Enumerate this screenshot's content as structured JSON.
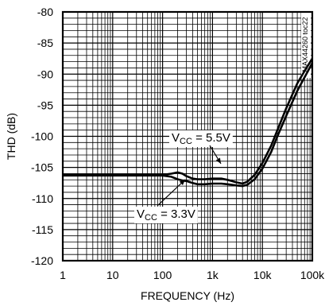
{
  "chart_data": {
    "type": "line",
    "xlabel": "FREQUENCY (Hz)",
    "ylabel": "THD (dB)",
    "x_scale": "log",
    "xlim": [
      1,
      100000
    ],
    "ylim": [
      -120,
      -80
    ],
    "xticks": [
      1,
      10,
      100,
      1000,
      10000,
      100000
    ],
    "xtick_labels": [
      "1",
      "10",
      "100",
      "1k",
      "10k",
      "100k"
    ],
    "yticks": [
      -80,
      -85,
      -90,
      -95,
      -100,
      -105,
      -110,
      -115,
      -120
    ],
    "ytick_labels": [
      "-80",
      "-85",
      "-90",
      "-95",
      "-100",
      "-105",
      "-110",
      "-115",
      "-120"
    ],
    "grid": true,
    "id_label": "MAX44260 toc22",
    "series": [
      {
        "name": "VCC = 5.5V",
        "color": "#000000",
        "x": [
          1,
          10,
          100,
          150,
          200,
          250,
          300,
          400,
          500,
          700,
          1000,
          1500,
          2000,
          3000,
          4000,
          5000,
          7000,
          10000,
          15000,
          20000,
          30000,
          50000,
          70000,
          100000
        ],
        "y": [
          -106.2,
          -106.2,
          -106.2,
          -106.0,
          -105.8,
          -106.0,
          -106.4,
          -106.8,
          -106.9,
          -106.9,
          -106.8,
          -106.8,
          -107.0,
          -107.4,
          -107.6,
          -107.3,
          -106.2,
          -104.3,
          -101.5,
          -99.0,
          -95.5,
          -91.5,
          -89.5,
          -87.5
        ]
      },
      {
        "name": "VCC = 3.3V",
        "color": "#000000",
        "x": [
          1,
          10,
          100,
          150,
          200,
          250,
          300,
          400,
          500,
          700,
          1000,
          1500,
          2000,
          3000,
          4000,
          5000,
          7000,
          10000,
          15000,
          20000,
          30000,
          50000,
          70000,
          100000
        ],
        "y": [
          -106.3,
          -106.3,
          -106.3,
          -106.5,
          -106.9,
          -107.1,
          -107.2,
          -107.5,
          -107.7,
          -107.7,
          -107.6,
          -107.6,
          -107.7,
          -107.9,
          -108.0,
          -107.8,
          -106.9,
          -105.2,
          -102.5,
          -100.0,
          -96.7,
          -92.7,
          -90.5,
          -88.2
        ]
      }
    ],
    "annotations": [
      {
        "label_main": "V",
        "label_sub": "CC",
        "label_rest": " = 5.5V"
      },
      {
        "label_main": "V",
        "label_sub": "CC",
        "label_rest": " = 3.3V"
      }
    ]
  }
}
